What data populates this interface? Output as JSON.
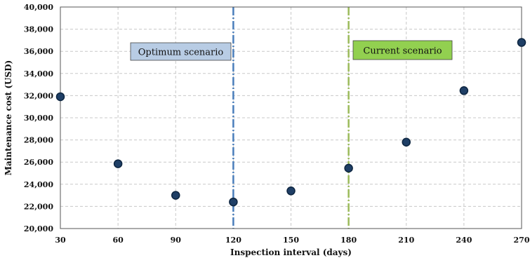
{
  "chart_data": {
    "type": "scatter",
    "title": "",
    "xlabel": "Inspection interval  (days)",
    "ylabel": "Maintenance cost (USD)",
    "xlim": [
      30,
      270
    ],
    "ylim": [
      20000,
      40000
    ],
    "xticks": [
      30,
      60,
      90,
      120,
      150,
      180,
      210,
      240,
      270
    ],
    "xtick_labels": [
      "30",
      "60",
      "90",
      "120",
      "150",
      "180",
      "210",
      "240",
      "270"
    ],
    "yticks": [
      20000,
      22000,
      24000,
      26000,
      28000,
      30000,
      32000,
      34000,
      36000,
      38000,
      40000
    ],
    "ytick_labels": [
      "20,000",
      "22,000",
      "24,000",
      "26,000",
      "28,000",
      "30,000",
      "32,000",
      "34,000",
      "36,000",
      "38,000",
      "40,000"
    ],
    "grid": true,
    "series": [
      {
        "x": [
          30,
          60,
          90,
          120,
          150,
          180,
          210,
          240,
          270
        ],
        "y": [
          31900,
          25850,
          23000,
          22400,
          23400,
          25450,
          27800,
          32450,
          36800
        ],
        "color": "#1f3f66"
      }
    ],
    "annotations": [
      {
        "text": "Optimum scenario",
        "x": 120,
        "line_color": "#4a7ebb",
        "box_color": "#b8cce4"
      },
      {
        "text": "Current scenario",
        "x": 180,
        "line_color": "#9bbb59",
        "box_color": "#92d050"
      }
    ]
  }
}
